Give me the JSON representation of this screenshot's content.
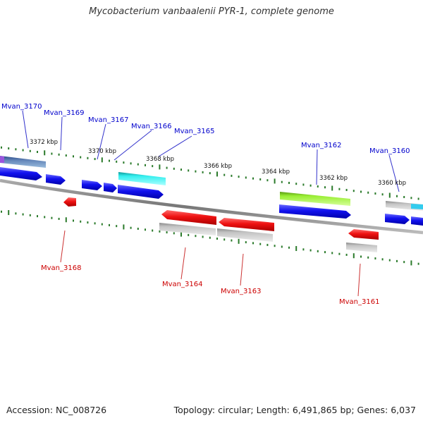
{
  "title": "Mycobacterium vanbaalenii PYR-1, complete genome",
  "accession_text": "Accession: NC_008726",
  "topology_text": "Topology: circular; Length: 6,491,865 bp; Genes: 6,037",
  "colors": {
    "forward_gene": "#1515ee",
    "reverse_gene": "#ee1515",
    "forward_label": "#0000cc",
    "reverse_label": "#cc0000",
    "backbone": "#888888",
    "tick": "#2a7a2a",
    "cyan_feature": "#25e5e5",
    "green_feature": "#99ee33",
    "gray_feature": "#bbbbbb",
    "steel_feature": "#5577aa"
  },
  "ruler": [
    {
      "label": "3372 kbp"
    },
    {
      "label": "3370 kbp"
    },
    {
      "label": "3368 kbp"
    },
    {
      "label": "3366 kbp"
    },
    {
      "label": "3364 kbp"
    },
    {
      "label": "3362 kbp"
    },
    {
      "label": "3360 kbp"
    }
  ],
  "forward_labels": [
    {
      "name": "Mvan_3170"
    },
    {
      "name": "Mvan_3169"
    },
    {
      "name": "Mvan_3167"
    },
    {
      "name": "Mvan_3166"
    },
    {
      "name": "Mvan_3165"
    },
    {
      "name": "Mvan_3162"
    },
    {
      "name": "Mvan_3160"
    }
  ],
  "reverse_labels": [
    {
      "name": "Mvan_3168"
    },
    {
      "name": "Mvan_3164"
    },
    {
      "name": "Mvan_3163"
    },
    {
      "name": "Mvan_3161"
    }
  ]
}
